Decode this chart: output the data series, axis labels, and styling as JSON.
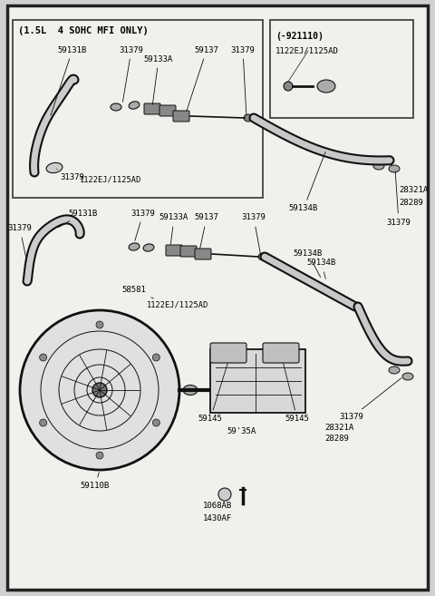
{
  "bg_color": "#d0d0d0",
  "inner_bg": "#f0f0ec",
  "border_color": "#222222",
  "text_color": "#000000",
  "line_color": "#111111",
  "upper_box_label": "(1.5L  4 SOHC MFI ONLY)",
  "inset_box_label": "(-921110)",
  "inset_sub_label": "1122EJ/1125AD",
  "fig_w": 4.8,
  "fig_h": 6.57,
  "dpi": 100
}
